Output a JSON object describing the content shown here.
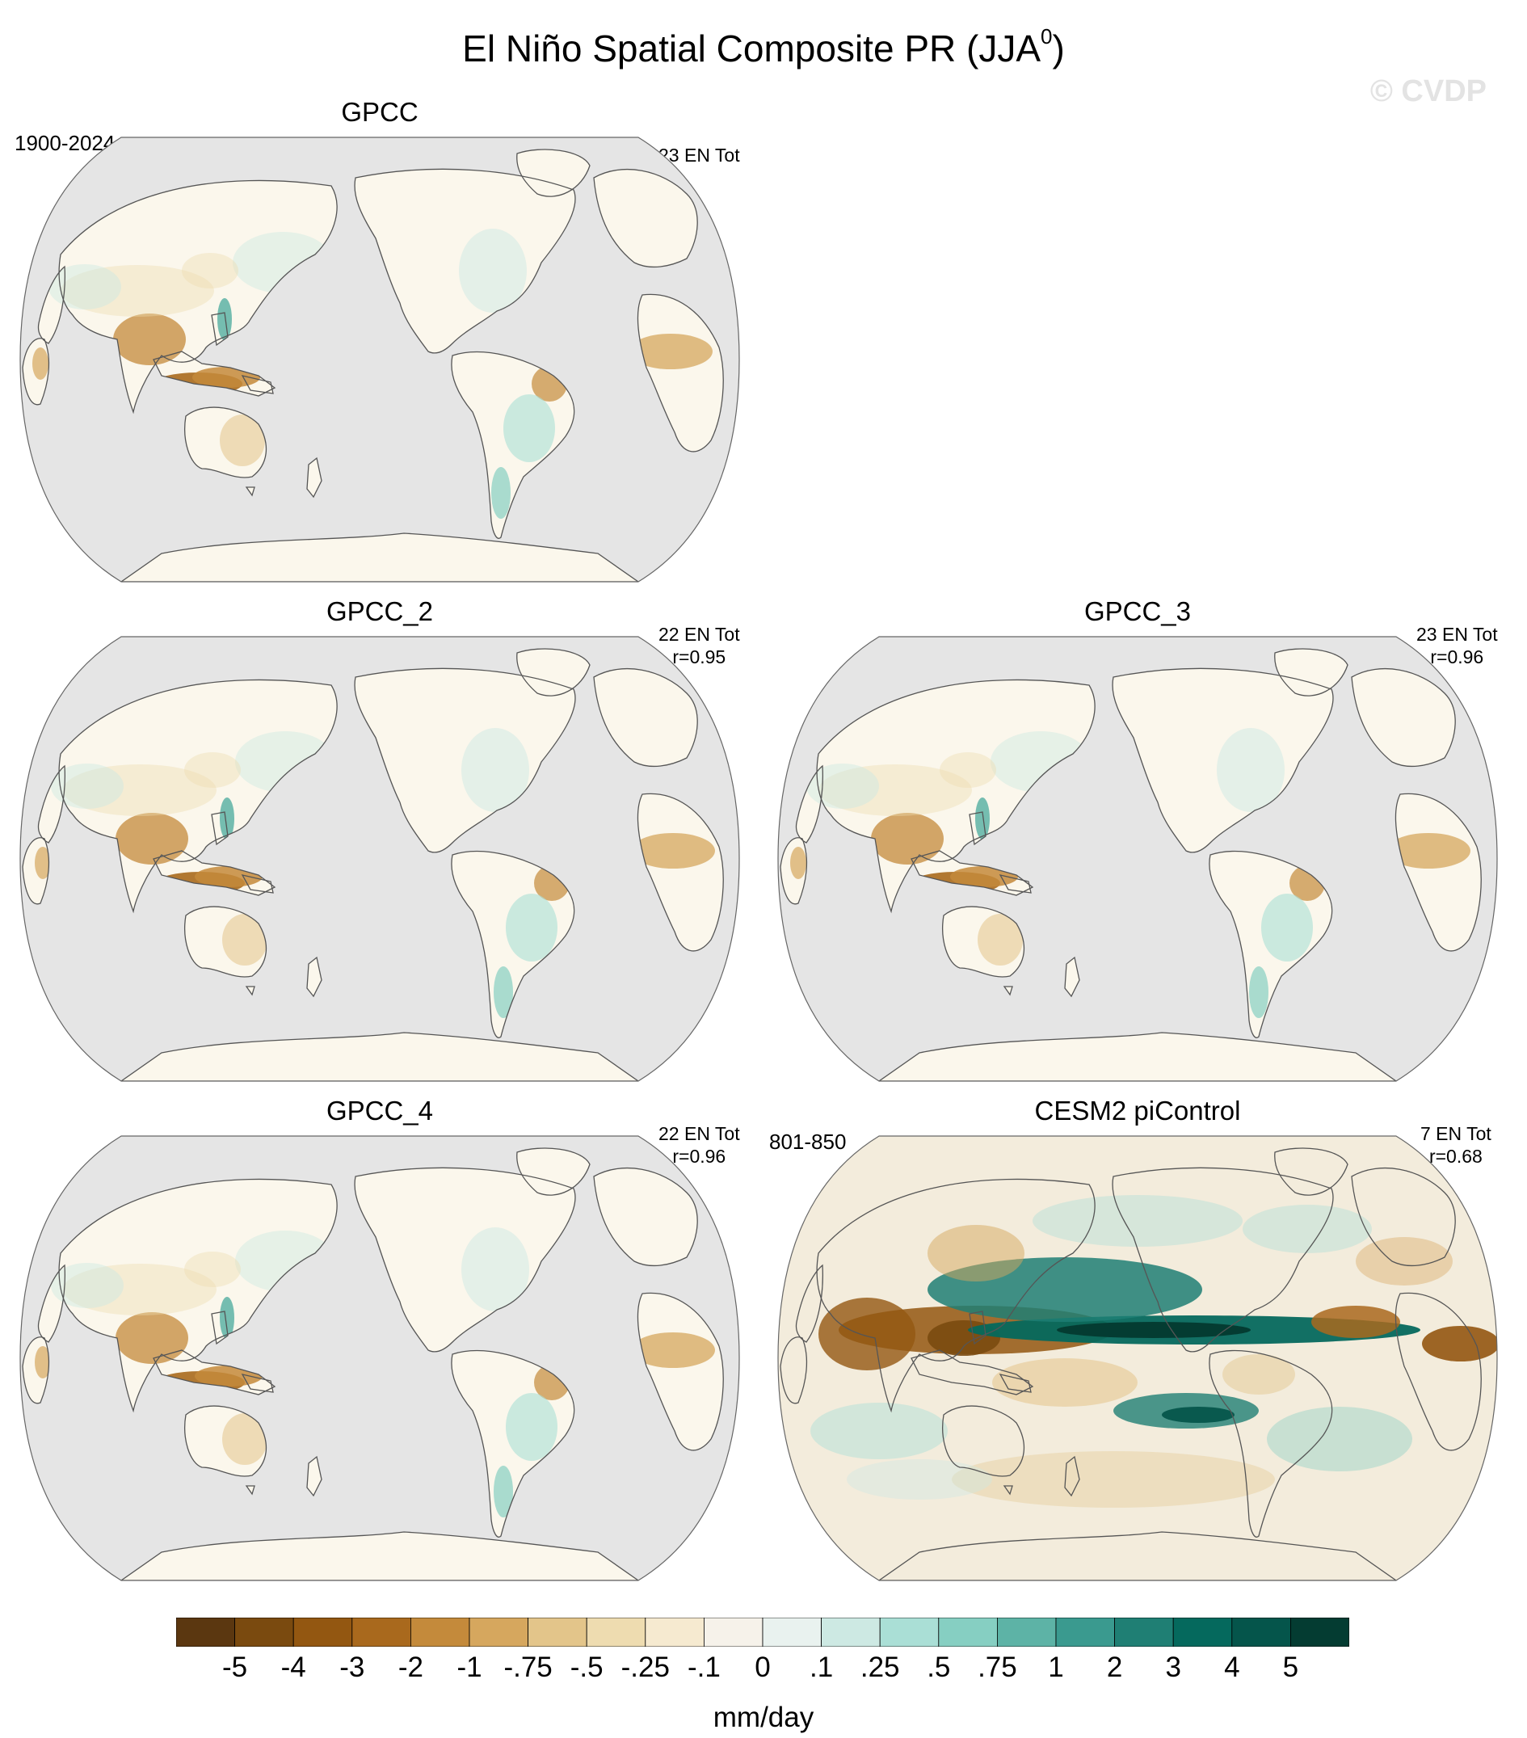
{
  "title": "El Niño Spatial Composite PR (JJA",
  "title_superscript": "0",
  "title_end": ")",
  "watermark": "© CVDP",
  "land_color": "#fbf7ec",
  "ocean_color": "#e5e5e5",
  "panels": [
    {
      "title": "GPCC",
      "left_label": "1900-2024",
      "right_line1": "23 EN Tot",
      "right_line2": "",
      "style": "obs"
    },
    {
      "title": "GPCC_2",
      "left_label": "",
      "right_line1": "22 EN Tot",
      "right_line2": "r=0.95",
      "style": "obs"
    },
    {
      "title": "GPCC_3",
      "left_label": "",
      "right_line1": "23 EN Tot",
      "right_line2": "r=0.96",
      "style": "obs"
    },
    {
      "title": "GPCC_4",
      "left_label": "",
      "right_line1": "22 EN Tot",
      "right_line2": "r=0.96",
      "style": "obs"
    },
    {
      "title": "CESM2 piControl",
      "left_label": "801-850",
      "right_line1": "7 EN Tot",
      "right_line2": "r=0.68",
      "style": "model"
    }
  ],
  "colorbar": {
    "units": "mm/day",
    "labels": [
      "-5",
      "-4",
      "-3",
      "-2",
      "-1",
      "-.75",
      "-.5",
      "-.25",
      "-.1",
      "0",
      ".1",
      ".25",
      ".5",
      ".75",
      "1",
      "2",
      "3",
      "4",
      "5"
    ],
    "colors": [
      "#5b3710",
      "#7a4a0f",
      "#935711",
      "#a9691d",
      "#c48a3b",
      "#d6a75e",
      "#e3c58a",
      "#eedcb0",
      "#f6ead0",
      "#f6f2ea",
      "#e9f2ef",
      "#cde9e3",
      "#aadfd6",
      "#86cfc2",
      "#5db3a6",
      "#3a9a8f",
      "#1f7f74",
      "#05695d",
      "#05554b",
      "#043c32"
    ]
  }
}
